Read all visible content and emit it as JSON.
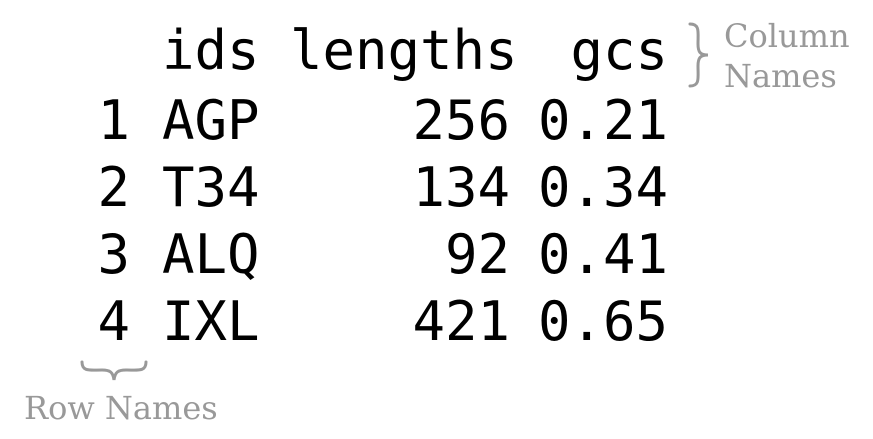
{
  "table": {
    "columns": [
      "ids",
      "lengths",
      "gcs"
    ],
    "rows": [
      {
        "name": "1",
        "ids": "AGP",
        "lengths": "256",
        "gcs": "0.21"
      },
      {
        "name": "2",
        "ids": "T34",
        "lengths": "134",
        "gcs": "0.34"
      },
      {
        "name": "3",
        "ids": "ALQ",
        "lengths": "92",
        "gcs": "0.41"
      },
      {
        "name": "4",
        "ids": "IXL",
        "lengths": "421",
        "gcs": "0.65"
      }
    ]
  },
  "annotations": {
    "column_names_line1": "Column",
    "column_names_line2": "Names",
    "row_names": "Row Names"
  },
  "colors": {
    "text": "#000000",
    "annotation": "#999999",
    "background": "#ffffff"
  }
}
